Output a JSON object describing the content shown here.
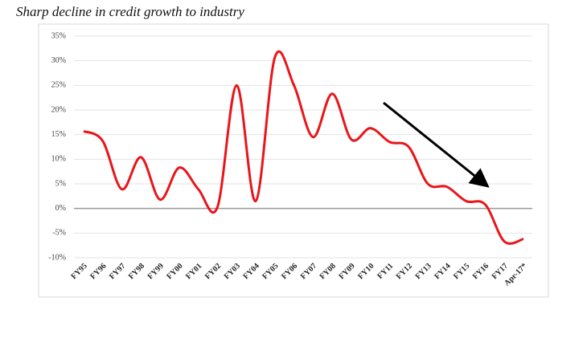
{
  "chart_data": {
    "type": "line",
    "title": "Sharp decline in credit growth to industry",
    "categories": [
      "FY95",
      "FY96",
      "FY97",
      "FY98",
      "FY99",
      "FY00",
      "FY01",
      "FY02",
      "FY03",
      "FY04",
      "FY05",
      "FY06",
      "FY07",
      "FY08",
      "FY09",
      "FY10",
      "FY11",
      "FY12",
      "FY13",
      "FY14",
      "FY15",
      "FY16",
      "FY17",
      "Apr-17*"
    ],
    "series": [
      {
        "name": "Credit growth to industry",
        "color": "#e8161b",
        "values": [
          15.7,
          13.7,
          3.9,
          10.4,
          1.8,
          8.3,
          3.9,
          0.3,
          25,
          1.5,
          30.7,
          25,
          14.5,
          23.3,
          14,
          16.3,
          13.5,
          12.5,
          5,
          4.4,
          1.5,
          0.8,
          -6.7,
          -6.2
        ]
      }
    ],
    "ylim": [
      -10,
      35
    ],
    "yticks": [
      {
        "value": -10,
        "label": "-10%"
      },
      {
        "value": -5,
        "label": "-5%"
      },
      {
        "value": 0,
        "label": "0%"
      },
      {
        "value": 5,
        "label": "5%"
      },
      {
        "value": 10,
        "label": "10%"
      },
      {
        "value": 15,
        "label": "15%"
      },
      {
        "value": 20,
        "label": "20%"
      },
      {
        "value": 25,
        "label": "25%"
      },
      {
        "value": 30,
        "label": "30%"
      },
      {
        "value": 35,
        "label": "35%"
      }
    ],
    "grid": true
  }
}
